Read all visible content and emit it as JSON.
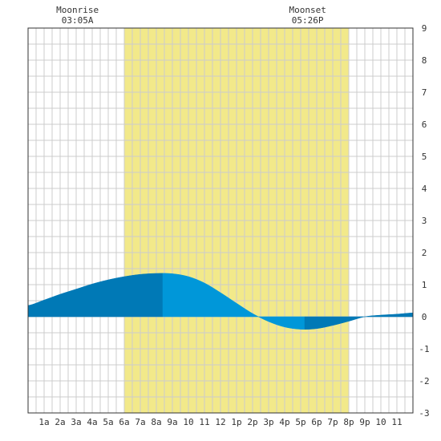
{
  "chart_data": {
    "type": "area",
    "title": "",
    "xlabel": "",
    "ylabel": "",
    "ylim": [
      -3,
      9
    ],
    "xlim": [
      0,
      24
    ],
    "grid": true,
    "x_ticks": [
      "1a",
      "2a",
      "3a",
      "4a",
      "5a",
      "6a",
      "7a",
      "8a",
      "9a",
      "10",
      "11",
      "12",
      "1p",
      "2p",
      "3p",
      "4p",
      "5p",
      "6p",
      "7p",
      "8p",
      "9p",
      "10",
      "11"
    ],
    "y_ticks": [
      "9",
      "8",
      "7",
      "6",
      "5",
      "4",
      "3",
      "2",
      "1",
      "0",
      "-1",
      "-2",
      "-3"
    ],
    "y_tick_values": [
      9,
      8,
      7,
      6,
      5,
      4,
      3,
      2,
      1,
      0,
      -1,
      -2,
      -3
    ],
    "daylight": {
      "start_hour": 6.0,
      "end_hour": 20.0
    },
    "annotations": [
      {
        "id": "moonrise",
        "label": "Moonrise",
        "time": "03:05A",
        "hour": 3.083
      },
      {
        "id": "moonset",
        "label": "Moonset",
        "time": "05:26P",
        "hour": 17.433
      }
    ],
    "series": [
      {
        "x": [
          0,
          1,
          2,
          3,
          4,
          5,
          6,
          7,
          8,
          9,
          10,
          11,
          12,
          13,
          14,
          15,
          16,
          17,
          18,
          19,
          20,
          21,
          22,
          23,
          24
        ],
        "values": [
          0.35,
          0.52,
          0.7,
          0.86,
          1.02,
          1.15,
          1.25,
          1.32,
          1.35,
          1.34,
          1.25,
          1.05,
          0.75,
          0.42,
          0.1,
          -0.15,
          -0.32,
          -0.39,
          -0.37,
          -0.27,
          -0.14,
          0.0,
          0.05,
          0.08,
          0.12
        ]
      }
    ],
    "colors": {
      "background": "#ffffff",
      "daylight": "#f2e98a",
      "grid": "#cccccc",
      "border": "#333333",
      "tide_light": "#0097d9",
      "tide_dark": "#0079b6"
    }
  }
}
